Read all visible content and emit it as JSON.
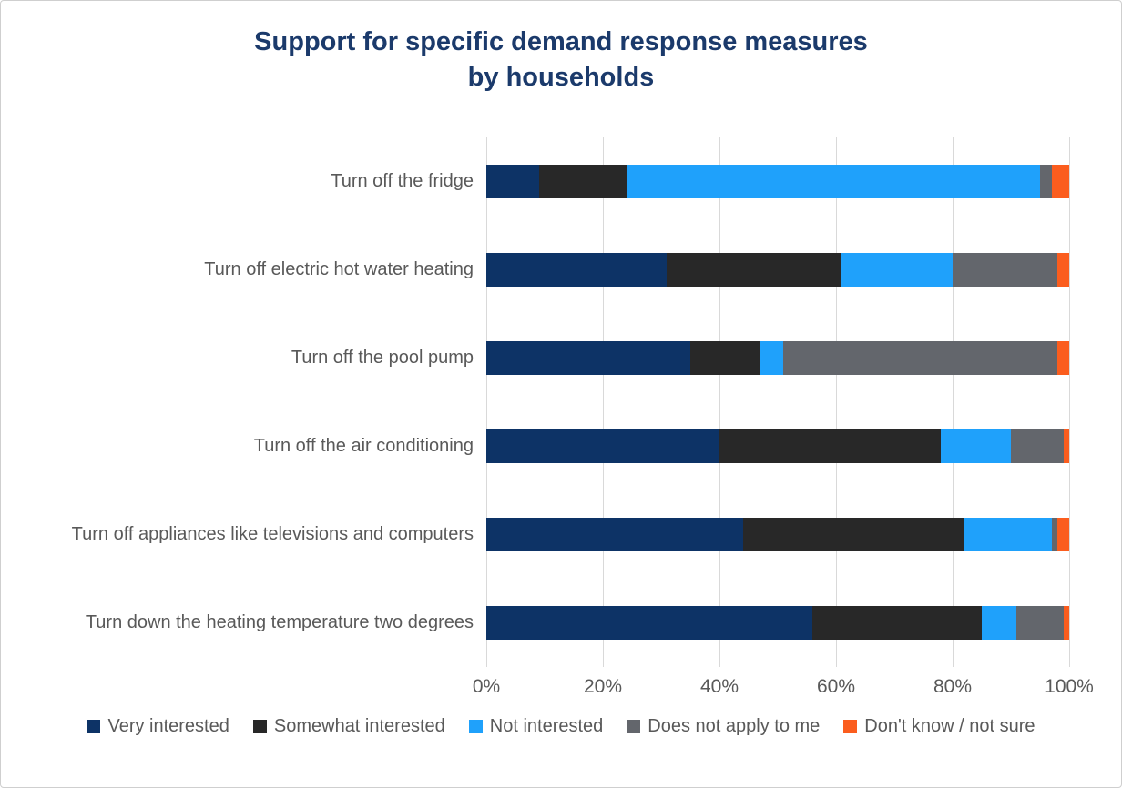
{
  "colors": {
    "title": "#1b3a6b",
    "text": "#595959",
    "gridline": "#d9d9d9",
    "background": "#ffffff",
    "border": "#cfcfcf"
  },
  "chart_data": {
    "type": "bar",
    "orientation": "horizontal-stacked",
    "title": "Support for specific demand response measures by households",
    "title_lines": [
      "Support for specific demand response measures",
      "by households"
    ],
    "categories": [
      "Turn off the fridge",
      "Turn off electric hot water heating",
      "Turn off the pool pump",
      "Turn off the air conditioning",
      "Turn off appliances like televisions and computers",
      "Turn down the heating temperature two degrees"
    ],
    "series": [
      {
        "name": "Very interested",
        "color": "#0d3366",
        "values": [
          9,
          31,
          35,
          40,
          44,
          56
        ]
      },
      {
        "name": "Somewhat interested",
        "color": "#282828",
        "values": [
          15,
          30,
          12,
          38,
          38,
          29
        ]
      },
      {
        "name": "Not interested",
        "color": "#1fa1fb",
        "values": [
          71,
          19,
          4,
          12,
          15,
          6
        ]
      },
      {
        "name": "Does not apply to me",
        "color": "#63666c",
        "values": [
          2,
          18,
          47,
          9,
          1,
          8
        ]
      },
      {
        "name": "Don't know / not sure",
        "color": "#fb5d1e",
        "values": [
          3,
          2,
          2,
          1,
          2,
          1
        ]
      }
    ],
    "x_ticks": [
      "0%",
      "20%",
      "40%",
      "60%",
      "80%",
      "100%"
    ],
    "xlim": [
      0,
      100
    ],
    "grid": "vertical",
    "legend_position": "bottom",
    "units": "percent of households"
  }
}
